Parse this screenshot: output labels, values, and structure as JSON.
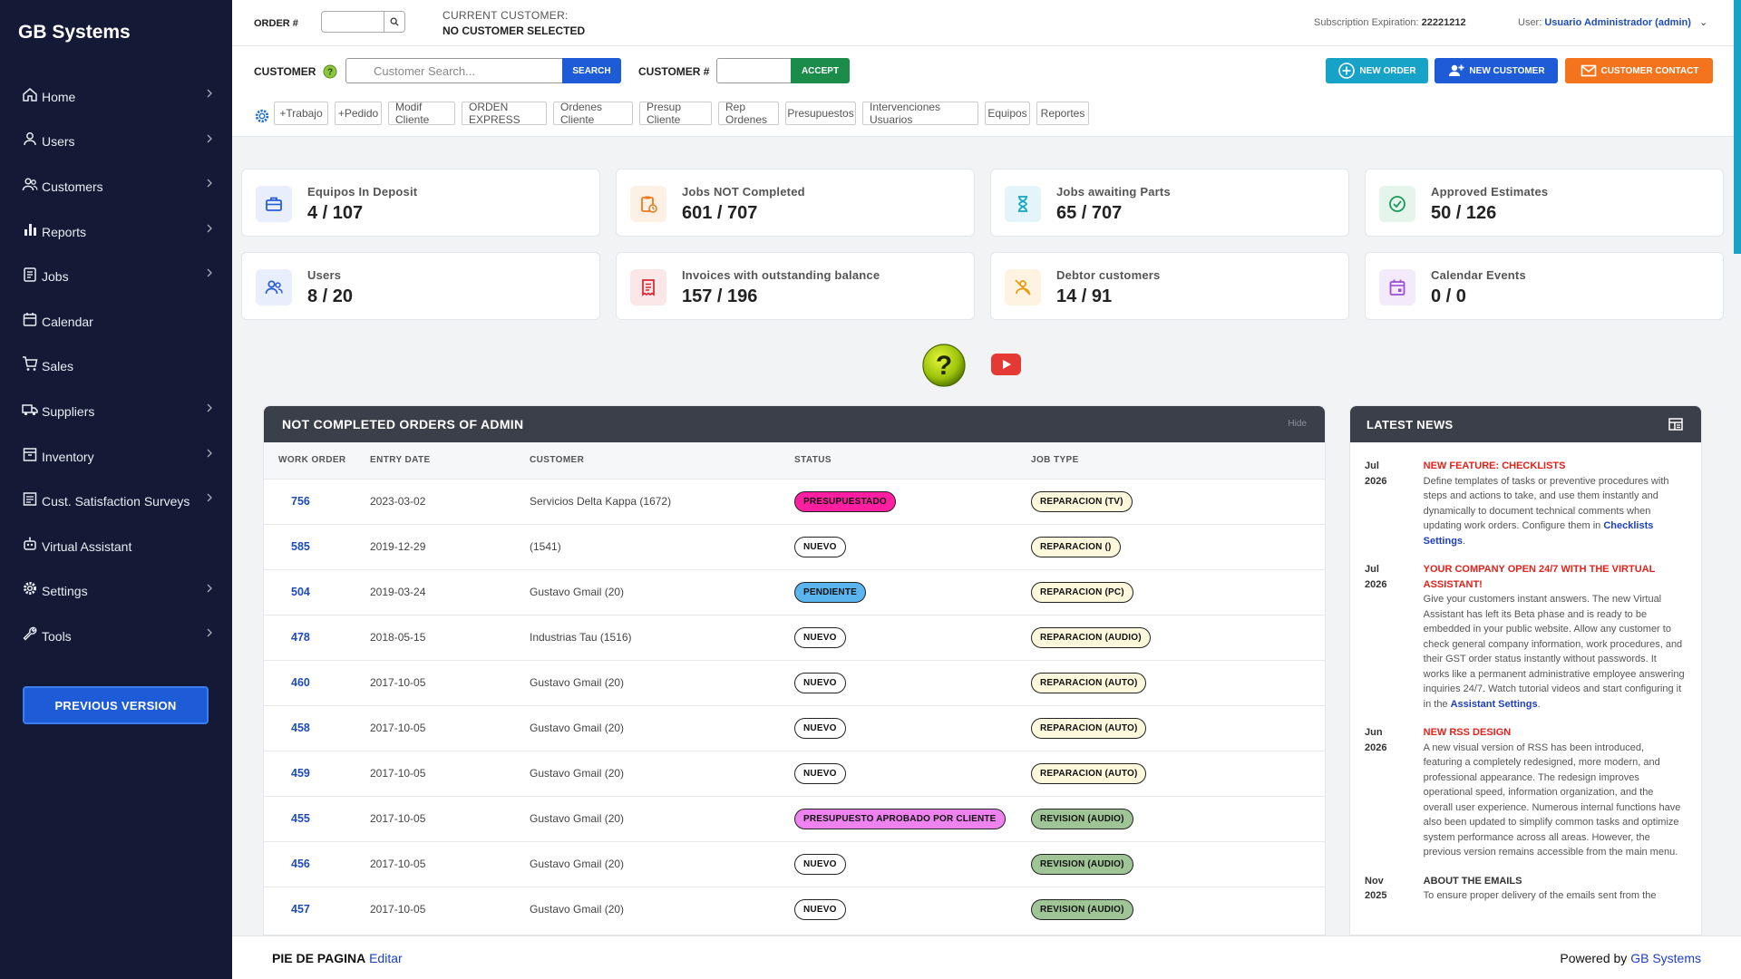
{
  "brand": "GB Systems",
  "sidebar": {
    "items": [
      {
        "label": "Home",
        "icon": "home-icon",
        "chevron": true
      },
      {
        "label": "Users",
        "icon": "user-icon",
        "chevron": true
      },
      {
        "label": "Customers",
        "icon": "customers-icon",
        "chevron": true
      },
      {
        "label": "Reports",
        "icon": "bar-chart-icon",
        "chevron": true
      },
      {
        "label": "Jobs",
        "icon": "clipboard-icon",
        "chevron": true
      },
      {
        "label": "Calendar",
        "icon": "calendar-icon",
        "chevron": false
      },
      {
        "label": "Sales",
        "icon": "cart-icon",
        "chevron": false
      },
      {
        "label": "Suppliers",
        "icon": "truck-icon",
        "chevron": true
      },
      {
        "label": "Inventory",
        "icon": "box-icon",
        "chevron": true
      },
      {
        "label": "Cust. Satisfaction Surveys",
        "icon": "survey-icon",
        "chevron": true
      },
      {
        "label": "Virtual Assistant",
        "icon": "robot-icon",
        "chevron": false
      },
      {
        "label": "Settings",
        "icon": "gear-icon",
        "chevron": true
      },
      {
        "label": "Tools",
        "icon": "wrench-icon",
        "chevron": true
      }
    ],
    "previous_version": "PREVIOUS VERSION"
  },
  "topbar": {
    "order_label": "ORDER #",
    "current_customer_label": "CURRENT CUSTOMER:",
    "current_customer_value": "NO CUSTOMER SELECTED",
    "subscription_label": "Subscription Expiration:",
    "subscription_value": "22221212",
    "user_label": "User:",
    "user_value": "Usuario Administrador (admin)"
  },
  "actionbar": {
    "customer_label": "CUSTOMER",
    "search_placeholder": "Customer Search...",
    "search_btn": "SEARCH",
    "customer_num_label": "CUSTOMER #",
    "accept_btn": "ACCEPT",
    "new_order": "NEW ORDER",
    "new_customer": "NEW CUSTOMER",
    "customer_contact": "CUSTOMER CONTACT",
    "quick_links": [
      "+Trabajo",
      "+Pedido",
      "Modif Cliente",
      "ORDEN EXPRESS",
      "Ordenes Cliente",
      "Presup Cliente",
      "Rep Ordenes",
      "Presupuestos",
      "Intervenciones Usuarios",
      "Equipos",
      "Reportes"
    ]
  },
  "stats": [
    {
      "title": "Equipos In Deposit",
      "value": "4 / 107",
      "icon": "briefcase-icon",
      "color": "#2a5bd7",
      "bg": "#e8eefb"
    },
    {
      "title": "Jobs NOT Completed",
      "value": "601 / 707",
      "icon": "clipboard-clock-icon",
      "color": "#f07a1a",
      "bg": "#fdf0e4"
    },
    {
      "title": "Jobs awaiting Parts",
      "value": "65 / 707",
      "icon": "hourglass-icon",
      "color": "#15a7c2",
      "bg": "#e3f5f9"
    },
    {
      "title": "Approved Estimates",
      "value": "50 / 126",
      "icon": "check-circle-icon",
      "color": "#1a9a5a",
      "bg": "#e5f5ec"
    },
    {
      "title": "Users",
      "value": "8 / 20",
      "icon": "users-icon",
      "color": "#2a5bd7",
      "bg": "#e8eefb"
    },
    {
      "title": "Invoices with outstanding balance",
      "value": "157 / 196",
      "icon": "invoice-icon",
      "color": "#d9262f",
      "bg": "#fbe7e8"
    },
    {
      "title": "Debtor customers",
      "value": "14 / 91",
      "icon": "debtor-icon",
      "color": "#e89a13",
      "bg": "#fdf3e0"
    },
    {
      "title": "Calendar Events",
      "value": "0 / 0",
      "icon": "calendar-event-icon",
      "color": "#9b4fd3",
      "bg": "#f3eafb"
    }
  ],
  "orders": {
    "title": "NOT COMPLETED ORDERS OF ADMIN",
    "hide": "Hide",
    "columns": [
      "WORK ORDER",
      "ENTRY DATE",
      "CUSTOMER",
      "STATUS",
      "JOB TYPE"
    ],
    "rows": [
      {
        "wo": "756",
        "date": "2023-03-02",
        "customer": "Servicios Delta Kappa (1672)",
        "status": "PRESUPUESTADO",
        "status_color": "#ff1fa0",
        "job": "REPARACION (TV)",
        "job_color": "#fdf7dc"
      },
      {
        "wo": "585",
        "date": "2019-12-29",
        "customer": "(1541)",
        "status": "NUEVO",
        "status_color": "#ffffff",
        "job": "REPARACION ()",
        "job_color": "#fdf7dc"
      },
      {
        "wo": "504",
        "date": "2019-03-24",
        "customer": "Gustavo Gmail (20)",
        "status": "PENDIENTE",
        "status_color": "#5ab4ee",
        "job": "REPARACION (PC)",
        "job_color": "#fdf7dc"
      },
      {
        "wo": "478",
        "date": "2018-05-15",
        "customer": "Industrias Tau (1516)",
        "status": "NUEVO",
        "status_color": "#ffffff",
        "job": "REPARACION (AUDIO)",
        "job_color": "#fdf7dc"
      },
      {
        "wo": "460",
        "date": "2017-10-05",
        "customer": "Gustavo Gmail (20)",
        "status": "NUEVO",
        "status_color": "#ffffff",
        "job": "REPARACION (AUTO)",
        "job_color": "#fdf7dc"
      },
      {
        "wo": "458",
        "date": "2017-10-05",
        "customer": "Gustavo Gmail (20)",
        "status": "NUEVO",
        "status_color": "#ffffff",
        "job": "REPARACION (AUTO)",
        "job_color": "#fdf7dc"
      },
      {
        "wo": "459",
        "date": "2017-10-05",
        "customer": "Gustavo Gmail (20)",
        "status": "NUEVO",
        "status_color": "#ffffff",
        "job": "REPARACION (AUTO)",
        "job_color": "#fdf7dc"
      },
      {
        "wo": "455",
        "date": "2017-10-05",
        "customer": "Gustavo Gmail (20)",
        "status": "PRESUPUESTO APROBADO POR CLIENTE",
        "status_color": "#ee82ee",
        "job": "REVISION (AUDIO)",
        "job_color": "#9fc495"
      },
      {
        "wo": "456",
        "date": "2017-10-05",
        "customer": "Gustavo Gmail (20)",
        "status": "NUEVO",
        "status_color": "#ffffff",
        "job": "REVISION (AUDIO)",
        "job_color": "#9fc495"
      },
      {
        "wo": "457",
        "date": "2017-10-05",
        "customer": "Gustavo Gmail (20)",
        "status": "NUEVO",
        "status_color": "#ffffff",
        "job": "REVISION (AUDIO)",
        "job_color": "#9fc495"
      }
    ]
  },
  "news": {
    "title": "LATEST NEWS",
    "items": [
      {
        "month": "Jul",
        "year": "2026",
        "headline": "NEW FEATURE: CHECKLISTS",
        "body": "Define templates of tasks or preventive procedures with steps and actions to take, and use them instantly and dynamically to document technical comments when updating work orders. Configure them in ",
        "link": "Checklists Settings",
        "tail": "."
      },
      {
        "month": "Jul",
        "year": "2026",
        "headline": "YOUR COMPANY OPEN 24/7 WITH THE VIRTUAL ASSISTANT!",
        "body": "Give your customers instant answers. The new Virtual Assistant has left its Beta phase and is ready to be embedded in your public website. Allow any customer to check general company information, work procedures, and their GST order status instantly without passwords. It works like a permanent administrative employee answering inquiries 24/7. Watch tutorial videos and start configuring it in the ",
        "link": "Assistant Settings",
        "tail": "."
      },
      {
        "month": "Jun",
        "year": "2026",
        "headline": "NEW RSS DESIGN",
        "body": "A new visual version of RSS has been introduced, featuring a completely redesigned, more modern, and professional appearance. The redesign improves operational speed, information organization, and the overall user experience. Numerous internal functions have also been updated to simplify common tasks and optimize system performance across all areas. However, the previous version remains accessible from the main menu.",
        "link": "",
        "tail": ""
      },
      {
        "month": "Nov",
        "year": "2025",
        "headline": "ABOUT THE EMAILS",
        "body": "To ensure proper delivery of the emails sent from the",
        "link": "",
        "tail": ""
      }
    ]
  },
  "footer": {
    "left_label": "PIE DE PAGINA",
    "left_link": "Editar",
    "right_label": "Powered by",
    "right_link": "GB Systems"
  }
}
